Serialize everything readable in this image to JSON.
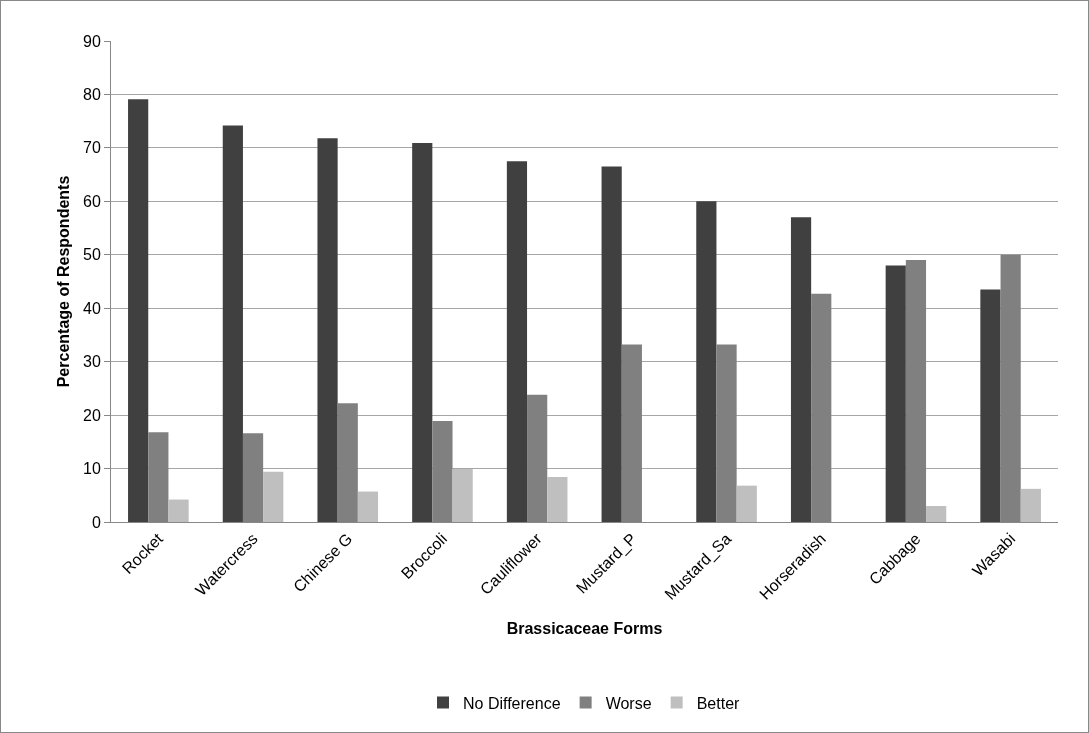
{
  "chart_data": {
    "type": "bar",
    "xlabel": "Brassicaceae Forms",
    "ylabel": "Percentage of Respondents",
    "categories": [
      "Rocket",
      "Watercress",
      "Chinese G",
      "Broccoli",
      "Cauliflower",
      "Mustard_P",
      "Mustard_Sa",
      "Horseradish",
      "Cabbage",
      "Wasabi"
    ],
    "series": [
      {
        "name": "No Difference",
        "color": "#404040",
        "values": [
          79.1,
          74.2,
          71.8,
          70.9,
          67.5,
          66.5,
          60,
          57,
          48,
          43.5
        ]
      },
      {
        "name": "Worse",
        "color": "#808080",
        "values": [
          16.8,
          16.6,
          22.2,
          18.9,
          23.8,
          33.2,
          33.2,
          42.7,
          49,
          50
        ]
      },
      {
        "name": "Better",
        "color": "#bfbfbf",
        "values": [
          4.2,
          9.4,
          5.7,
          9.9,
          8.4,
          null,
          6.8,
          null,
          3,
          6.2
        ]
      }
    ],
    "ylim": [
      0,
      90
    ],
    "yticks": [
      0,
      10,
      20,
      30,
      40,
      50,
      60,
      70,
      80,
      90
    ],
    "grid": "y",
    "legend": "bottom"
  }
}
